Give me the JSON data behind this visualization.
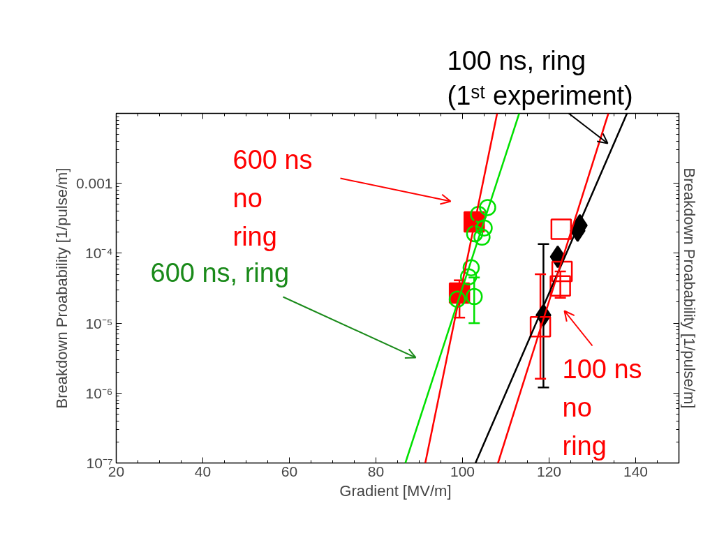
{
  "chart_data": {
    "type": "scatter",
    "xlabel": "Gradient  [MV/m]",
    "ylabel": "Breakdown Proabability [1/pulse/m]",
    "y2label": "Breakdown Proabability [1/pulse/m]",
    "xlim": [
      20,
      150
    ],
    "xticks": [
      20,
      40,
      60,
      80,
      100,
      120,
      140
    ],
    "ylim": [
      1e-07,
      0.01
    ],
    "log": true,
    "yticks": [
      {
        "value": 1e-07,
        "label": "10⁻⁷"
      },
      {
        "value": 1e-06,
        "label": "10⁻⁶"
      },
      {
        "value": 1e-05,
        "label": "10⁻⁵"
      },
      {
        "value": 0.0001,
        "label": "10⁻⁴"
      },
      {
        "value": 0.001,
        "label": "0.001"
      }
    ],
    "grid": false,
    "series": [
      {
        "marker": "square",
        "color": "#ff0000",
        "x": [
          99.3,
          102.7
        ],
        "values": [
          2.7e-05,
          0.00028
        ],
        "errors": [
          [
            1.2e-05,
            4.1e-05
          ],
          null
        ]
      },
      {
        "marker": "circle",
        "color": "#00e000",
        "x": [
          98.8,
          102.7,
          101.4,
          102.0,
          102.8,
          104.5,
          105.0,
          103.7,
          105.8
        ],
        "values": [
          2.2e-05,
          2.4e-05,
          4.6e-05,
          6.2e-05,
          0.00019,
          0.00017,
          0.00023,
          0.00036,
          0.00045
        ],
        "errors": [
          null,
          [
            1e-05,
            4.5e-05
          ],
          null,
          null,
          null,
          null,
          null,
          null,
          null
        ]
      },
      {
        "marker": "diamond",
        "color": "#000000",
        "x": [
          118.7,
          122.0,
          126.6,
          127.1
        ],
        "values": [
          1.3e-05,
          8.9e-05,
          0.00021,
          0.00025
        ],
        "errors": [
          [
            1.2e-06,
            0.000135
          ],
          null,
          null,
          null
        ]
      },
      {
        "marker": "square",
        "color": "#ff0000",
        "x": [
          118.0,
          122.8,
          123.0,
          122.6
        ],
        "values": [
          8.9e-06,
          0.00022,
          5.5e-05,
          3.4e-05
        ],
        "errors": [
          [
            1.6e-06,
            5e-05
          ],
          null,
          null,
          [
            2.3e-05,
            5.5e-05
          ]
        ]
      },
      {
        "type": "line",
        "color": "#ff0000",
        "x": [
          91.4,
          108.0
        ],
        "values": [
          1e-07,
          0.01
        ]
      },
      {
        "type": "line",
        "color": "#00e000",
        "x": [
          86.8,
          113.1
        ],
        "values": [
          1e-07,
          0.01
        ]
      },
      {
        "type": "line",
        "color": "#000000",
        "x": [
          103.0,
          138.0
        ],
        "values": [
          1e-07,
          0.01
        ]
      },
      {
        "type": "line",
        "color": "#ff0000",
        "x": [
          108.2,
          133.7
        ],
        "values": [
          1e-07,
          0.01
        ]
      }
    ],
    "annotations": [
      "600 ns\nno\nring",
      "600 ns, ring",
      "100 ns, ring\n(1ˢᵗ experiment)",
      "100 ns\nno\nring"
    ]
  }
}
